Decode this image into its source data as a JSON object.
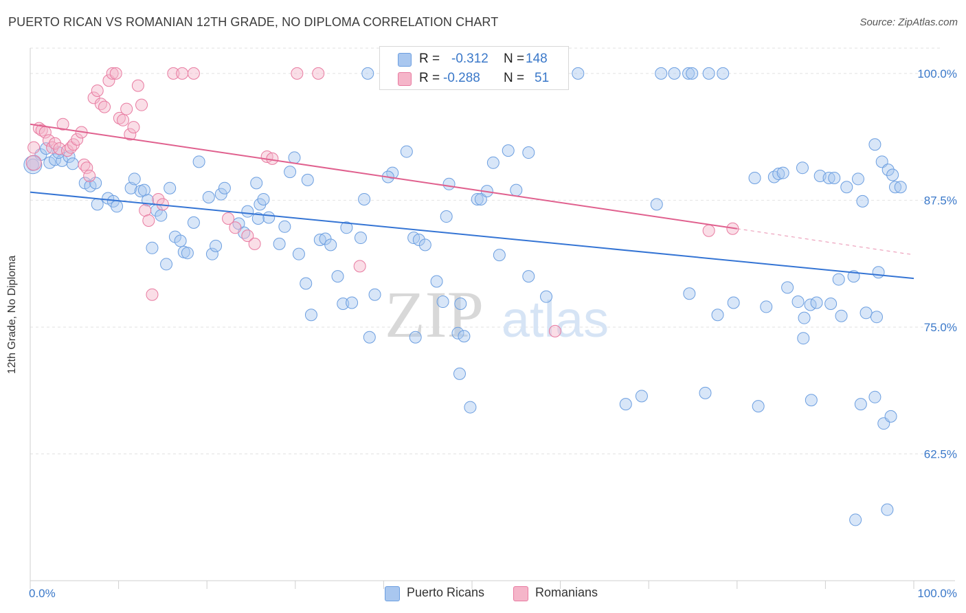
{
  "title": "PUERTO RICAN VS ROMANIAN 12TH GRADE, NO DIPLOMA CORRELATION CHART",
  "source": "Source: ZipAtlas.com",
  "watermark": {
    "zip": "ZIP",
    "atlas": "atlas"
  },
  "legend": {
    "r_label": "R =",
    "n_label": "N =",
    "entries": [
      {
        "r": "-0.312",
        "n": "148",
        "color": "#6b9ee0",
        "fill": "#a9c7ef"
      },
      {
        "r": "-0.288",
        "n": "51",
        "color": "#e87aa0",
        "fill": "#f5b5c9"
      }
    ]
  },
  "bottom_legend": [
    {
      "label": "Puerto Ricans",
      "fill": "#a9c7ef",
      "stroke": "#6b9ee0"
    },
    {
      "label": "Romanians",
      "fill": "#f5b5c9",
      "stroke": "#e87aa0"
    }
  ],
  "chart_data": {
    "type": "scatter",
    "xlabel": "",
    "ylabel": "12th Grade, No Diploma",
    "xlim": [
      0,
      100
    ],
    "ylim": [
      50,
      102.5
    ],
    "x_tick_labels": [
      "0.0%",
      "100.0%"
    ],
    "y_tick_labels": [
      "100.0%",
      "87.5%",
      "75.0%",
      "62.5%"
    ],
    "y_ticks": [
      100,
      87.5,
      75,
      62.5
    ],
    "grid": true,
    "series": [
      {
        "name": "Puerto Ricans",
        "color": "#6b9ee0",
        "trend": {
          "x": [
            0,
            100
          ],
          "y": [
            88.3,
            79.8
          ]
        },
        "points": [
          [
            0.3,
            91.0
          ],
          [
            1.2,
            92.0
          ],
          [
            1.8,
            92.6
          ],
          [
            2.2,
            91.2
          ],
          [
            2.8,
            91.5
          ],
          [
            3.6,
            91.4
          ],
          [
            4.4,
            91.8
          ],
          [
            4.8,
            91.1
          ],
          [
            3.2,
            92.2
          ],
          [
            6.2,
            89.2
          ],
          [
            6.8,
            88.9
          ],
          [
            7.4,
            89.2
          ],
          [
            7.6,
            87.1
          ],
          [
            8.8,
            87.7
          ],
          [
            9.4,
            87.4
          ],
          [
            9.8,
            86.9
          ],
          [
            11.4,
            88.7
          ],
          [
            11.8,
            89.6
          ],
          [
            12.5,
            88.4
          ],
          [
            12.9,
            88.5
          ],
          [
            13.3,
            87.5
          ],
          [
            14.3,
            86.5
          ],
          [
            14.8,
            86.0
          ],
          [
            13.8,
            82.8
          ],
          [
            15.4,
            81.2
          ],
          [
            16.4,
            83.9
          ],
          [
            17.0,
            83.5
          ],
          [
            17.4,
            82.4
          ],
          [
            17.8,
            82.3
          ],
          [
            15.8,
            88.7
          ],
          [
            18.5,
            85.3
          ],
          [
            19.1,
            91.3
          ],
          [
            20.6,
            82.2
          ],
          [
            21.0,
            83.0
          ],
          [
            20.2,
            87.8
          ],
          [
            21.6,
            88.1
          ],
          [
            22.0,
            88.7
          ],
          [
            23.6,
            85.2
          ],
          [
            24.2,
            84.3
          ],
          [
            25.6,
            89.2
          ],
          [
            24.6,
            86.4
          ],
          [
            26.0,
            87.1
          ],
          [
            26.4,
            87.6
          ],
          [
            27.0,
            85.8
          ],
          [
            25.8,
            85.7
          ],
          [
            28.2,
            83.2
          ],
          [
            28.8,
            84.9
          ],
          [
            29.4,
            90.3
          ],
          [
            29.9,
            91.7
          ],
          [
            30.4,
            82.2
          ],
          [
            31.2,
            79.3
          ],
          [
            31.8,
            76.2
          ],
          [
            31.4,
            89.5
          ],
          [
            32.8,
            83.6
          ],
          [
            33.4,
            83.7
          ],
          [
            34.0,
            83.1
          ],
          [
            34.8,
            80.0
          ],
          [
            35.4,
            77.3
          ],
          [
            36.4,
            77.4
          ],
          [
            37.4,
            83.8
          ],
          [
            37.8,
            87.6
          ],
          [
            38.4,
            74.0
          ],
          [
            35.8,
            84.8
          ],
          [
            39.0,
            78.2
          ],
          [
            38.2,
            100.0
          ],
          [
            41.0,
            90.2
          ],
          [
            40.5,
            89.8
          ],
          [
            42.6,
            92.3
          ],
          [
            43.4,
            83.8
          ],
          [
            44.0,
            83.6
          ],
          [
            44.7,
            83.1
          ],
          [
            46.0,
            79.5
          ],
          [
            46.7,
            77.5
          ],
          [
            47.4,
            89.1
          ],
          [
            47.1,
            85.9
          ],
          [
            48.4,
            74.4
          ],
          [
            49.1,
            74.1
          ],
          [
            48.7,
            77.3
          ],
          [
            43.6,
            74.0
          ],
          [
            48.6,
            70.4
          ],
          [
            49.8,
            67.1
          ],
          [
            50.6,
            87.6
          ],
          [
            51.0,
            87.6
          ],
          [
            51.7,
            88.4
          ],
          [
            52.4,
            91.2
          ],
          [
            53.1,
            82.1
          ],
          [
            54.1,
            92.4
          ],
          [
            55.0,
            88.5
          ],
          [
            56.4,
            92.2
          ],
          [
            56.4,
            80.0
          ],
          [
            58.4,
            78.0
          ],
          [
            62.0,
            100.0
          ],
          [
            67.4,
            67.4
          ],
          [
            69.2,
            68.2
          ],
          [
            70.9,
            87.1
          ],
          [
            71.4,
            100.0
          ],
          [
            72.9,
            100.0
          ],
          [
            74.5,
            100.0
          ],
          [
            74.9,
            100.0
          ],
          [
            76.4,
            68.5
          ],
          [
            76.8,
            100.0
          ],
          [
            78.4,
            100.0
          ],
          [
            82.0,
            89.7
          ],
          [
            84.2,
            89.8
          ],
          [
            84.7,
            90.1
          ],
          [
            85.2,
            90.2
          ],
          [
            87.4,
            90.7
          ],
          [
            89.4,
            89.9
          ],
          [
            90.4,
            89.7
          ],
          [
            91.0,
            89.7
          ],
          [
            92.4,
            88.8
          ],
          [
            93.7,
            89.6
          ],
          [
            94.2,
            87.4
          ],
          [
            95.6,
            93.0
          ],
          [
            96.4,
            91.3
          ],
          [
            97.1,
            90.5
          ],
          [
            97.6,
            90.0
          ],
          [
            97.9,
            88.8
          ],
          [
            98.5,
            88.8
          ],
          [
            96.0,
            80.4
          ],
          [
            93.2,
            80.0
          ],
          [
            91.5,
            79.7
          ],
          [
            90.6,
            77.3
          ],
          [
            87.5,
            73.9
          ],
          [
            88.4,
            67.8
          ],
          [
            85.7,
            78.9
          ],
          [
            91.8,
            76.1
          ],
          [
            94.6,
            76.4
          ],
          [
            95.8,
            76.0
          ],
          [
            94.0,
            67.4
          ],
          [
            95.6,
            68.1
          ],
          [
            96.6,
            65.5
          ],
          [
            97.4,
            66.2
          ],
          [
            93.4,
            56.0
          ],
          [
            97.0,
            57.0
          ],
          [
            74.6,
            78.3
          ],
          [
            77.8,
            76.2
          ],
          [
            82.4,
            67.2
          ],
          [
            86.9,
            77.5
          ],
          [
            87.6,
            75.9
          ],
          [
            88.3,
            77.2
          ],
          [
            89.0,
            77.4
          ],
          [
            79.6,
            77.4
          ],
          [
            83.3,
            77.0
          ]
        ]
      },
      {
        "name": "Romanians",
        "color": "#e87aa0",
        "trend": {
          "x": [
            0,
            80
          ],
          "y": [
            95.0,
            84.7
          ]
        },
        "points": [
          [
            0.4,
            92.7
          ],
          [
            1.0,
            94.6
          ],
          [
            1.3,
            94.4
          ],
          [
            1.7,
            94.2
          ],
          [
            2.1,
            93.4
          ],
          [
            2.5,
            92.7
          ],
          [
            2.8,
            93.1
          ],
          [
            3.3,
            92.6
          ],
          [
            3.7,
            95.0
          ],
          [
            4.2,
            92.4
          ],
          [
            4.6,
            92.7
          ],
          [
            4.9,
            93.0
          ],
          [
            5.3,
            93.5
          ],
          [
            5.8,
            94.2
          ],
          [
            6.1,
            91.0
          ],
          [
            6.4,
            90.7
          ],
          [
            6.7,
            89.9
          ],
          [
            7.2,
            97.6
          ],
          [
            7.6,
            98.3
          ],
          [
            8.0,
            97.0
          ],
          [
            8.4,
            96.7
          ],
          [
            8.9,
            99.3
          ],
          [
            9.3,
            100.0
          ],
          [
            9.7,
            100.0
          ],
          [
            10.1,
            95.6
          ],
          [
            10.5,
            95.4
          ],
          [
            10.9,
            96.5
          ],
          [
            11.3,
            94.0
          ],
          [
            11.7,
            94.7
          ],
          [
            12.2,
            98.8
          ],
          [
            12.6,
            96.9
          ],
          [
            13.0,
            86.5
          ],
          [
            13.4,
            85.5
          ],
          [
            13.8,
            78.2
          ],
          [
            14.5,
            87.6
          ],
          [
            15.0,
            87.1
          ],
          [
            16.2,
            100.0
          ],
          [
            17.2,
            100.0
          ],
          [
            18.5,
            100.0
          ],
          [
            22.4,
            85.7
          ],
          [
            23.2,
            84.8
          ],
          [
            24.6,
            84.0
          ],
          [
            25.4,
            83.2
          ],
          [
            26.8,
            91.8
          ],
          [
            27.4,
            91.6
          ],
          [
            30.2,
            100.0
          ],
          [
            32.6,
            100.0
          ],
          [
            37.3,
            81.0
          ],
          [
            59.4,
            74.6
          ],
          [
            76.8,
            84.5
          ],
          [
            79.5,
            84.7
          ]
        ]
      }
    ]
  }
}
